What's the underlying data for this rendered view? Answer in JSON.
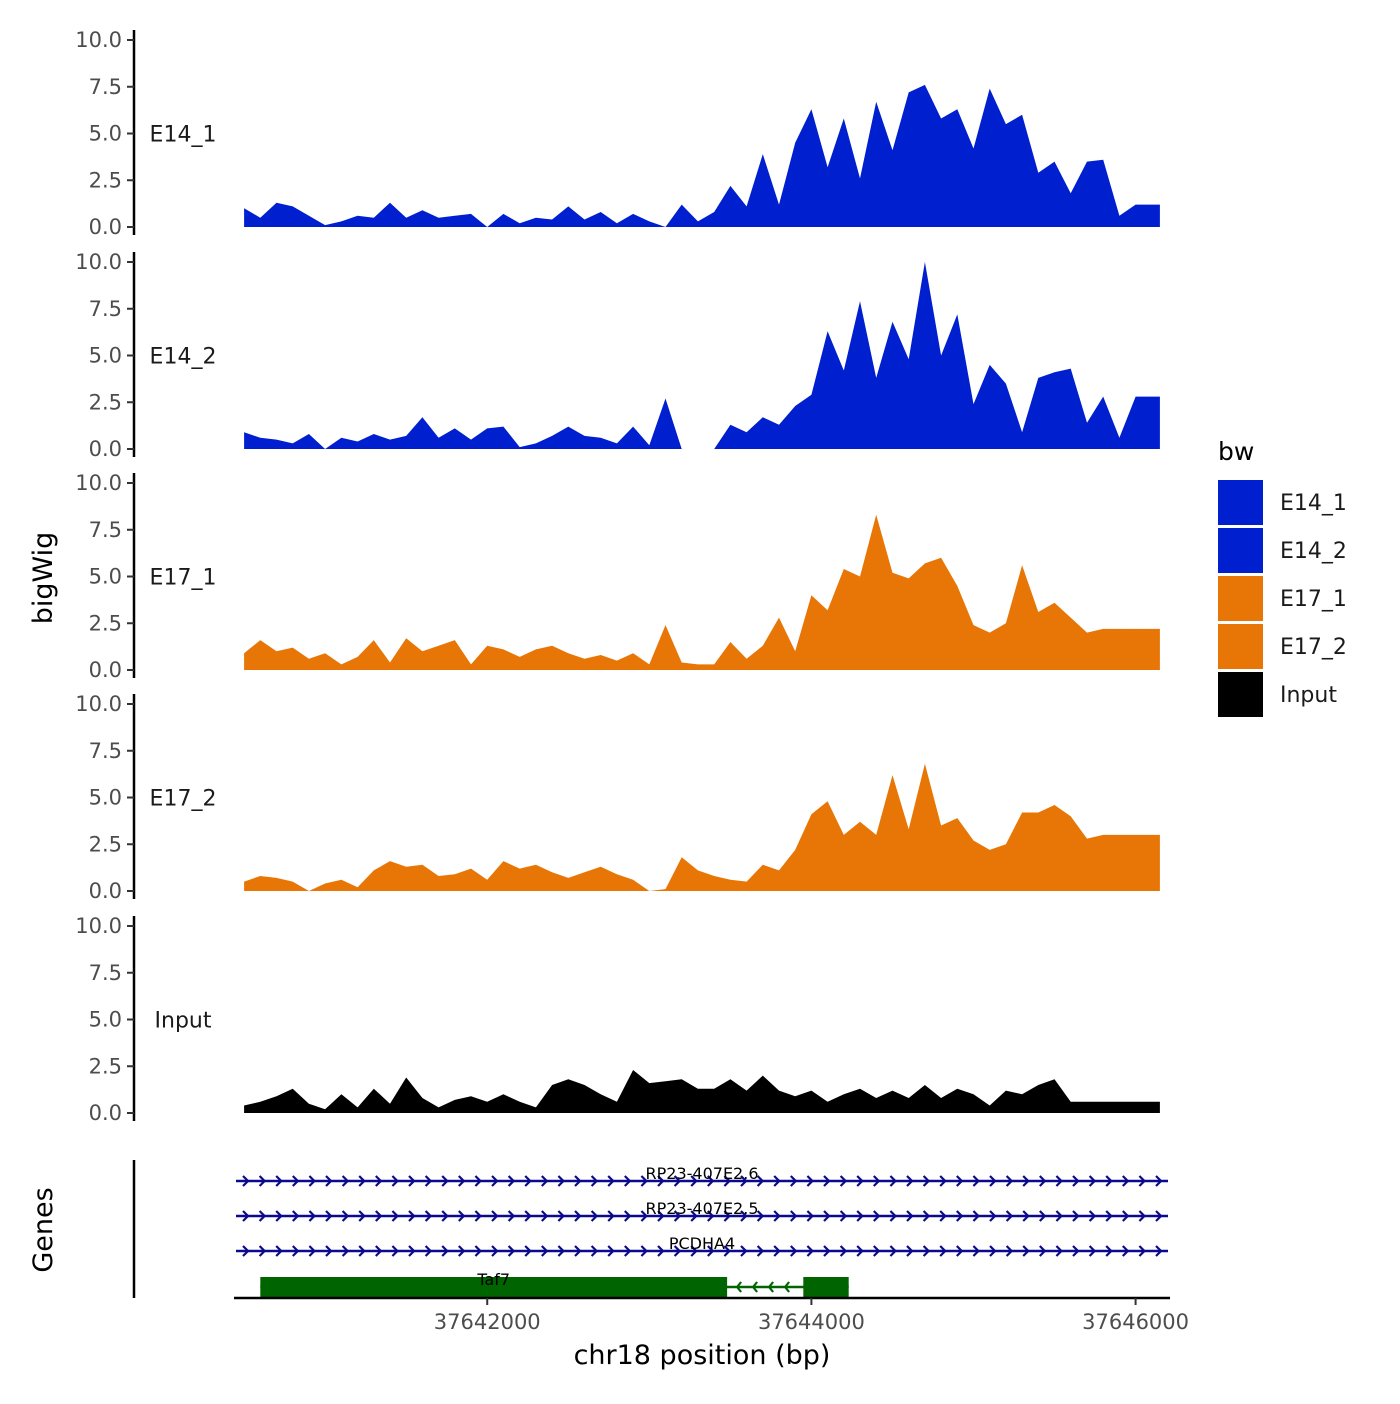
{
  "chart_data": {
    "type": "area",
    "ylabel": "bigWig",
    "xlabel": "chr18 position (bp)",
    "xlim": [
      37640450,
      37646200
    ],
    "ylim": [
      0,
      10
    ],
    "y_ticks": [
      "0.0",
      "2.5",
      "5.0",
      "7.5",
      "10.0"
    ],
    "x_ticks": [
      {
        "value": 37642000,
        "label": "37642000"
      },
      {
        "value": 37644000,
        "label": "37644000"
      },
      {
        "value": 37646000,
        "label": "37646000"
      }
    ],
    "legend_title": "bw",
    "legend_placement": "right",
    "colors": {
      "E14_1": "#0020d0",
      "E14_2": "#0020d0",
      "E17_1": "#e87607",
      "E17_2": "#e87607",
      "Input": "#000000"
    },
    "x": [
      37640500,
      37640600,
      37640700,
      37640800,
      37640900,
      37641000,
      37641100,
      37641200,
      37641300,
      37641400,
      37641500,
      37641600,
      37641700,
      37641800,
      37641900,
      37642000,
      37642100,
      37642200,
      37642300,
      37642400,
      37642500,
      37642600,
      37642700,
      37642800,
      37642900,
      37643000,
      37643100,
      37643200,
      37643300,
      37643400,
      37643500,
      37643600,
      37643700,
      37643800,
      37643900,
      37644000,
      37644100,
      37644200,
      37644300,
      37644400,
      37644500,
      37644600,
      37644700,
      37644800,
      37644900,
      37645000,
      37645100,
      37645200,
      37645300,
      37645400,
      37645500,
      37645600,
      37645700,
      37645800,
      37645900,
      37646000,
      37646100,
      37646150
    ],
    "series": [
      {
        "name": "E14_1",
        "values": [
          1.0,
          0.5,
          1.3,
          1.1,
          0.6,
          0.1,
          0.3,
          0.6,
          0.5,
          1.3,
          0.5,
          0.9,
          0.5,
          0.6,
          0.7,
          0.0,
          0.7,
          0.2,
          0.5,
          0.4,
          1.1,
          0.4,
          0.8,
          0.2,
          0.7,
          0.3,
          0.0,
          1.2,
          0.3,
          0.8,
          2.2,
          1.1,
          3.9,
          1.2,
          4.5,
          6.3,
          3.2,
          5.8,
          2.6,
          6.7,
          4.1,
          7.2,
          7.6,
          5.8,
          6.3,
          4.2,
          7.4,
          5.5,
          6.0,
          2.9,
          3.5,
          1.8,
          3.5,
          3.6,
          0.6,
          1.2,
          1.2,
          1.2
        ]
      },
      {
        "name": "E14_2",
        "values": [
          0.9,
          0.6,
          0.5,
          0.3,
          0.8,
          0.0,
          0.6,
          0.4,
          0.8,
          0.5,
          0.7,
          1.7,
          0.6,
          1.1,
          0.5,
          1.1,
          1.2,
          0.1,
          0.3,
          0.7,
          1.2,
          0.7,
          0.6,
          0.3,
          1.2,
          0.2,
          2.7,
          0.0,
          0.0,
          0.0,
          1.3,
          0.9,
          1.7,
          1.3,
          2.3,
          2.9,
          6.3,
          4.2,
          7.9,
          3.8,
          6.8,
          4.8,
          10.0,
          5.0,
          7.2,
          2.4,
          4.5,
          3.5,
          0.9,
          3.8,
          4.1,
          4.3,
          1.4,
          2.8,
          0.6,
          2.8,
          2.8,
          2.8
        ]
      },
      {
        "name": "E17_1",
        "values": [
          0.9,
          1.6,
          1.0,
          1.2,
          0.6,
          0.9,
          0.3,
          0.7,
          1.6,
          0.4,
          1.7,
          1.0,
          1.3,
          1.6,
          0.3,
          1.3,
          1.1,
          0.7,
          1.1,
          1.3,
          0.9,
          0.6,
          0.8,
          0.5,
          0.9,
          0.3,
          2.4,
          0.4,
          0.3,
          0.3,
          1.5,
          0.6,
          1.3,
          2.8,
          1.0,
          4.0,
          3.2,
          5.4,
          5.0,
          8.3,
          5.2,
          4.9,
          5.7,
          6.0,
          4.5,
          2.4,
          2.0,
          2.5,
          5.6,
          3.1,
          3.6,
          2.8,
          2.0,
          2.2,
          2.2,
          2.2,
          2.2,
          2.2
        ]
      },
      {
        "name": "E17_2",
        "values": [
          0.5,
          0.8,
          0.7,
          0.5,
          0.0,
          0.4,
          0.6,
          0.2,
          1.1,
          1.6,
          1.3,
          1.4,
          0.8,
          0.9,
          1.2,
          0.6,
          1.6,
          1.2,
          1.4,
          1.0,
          0.7,
          1.0,
          1.3,
          0.9,
          0.6,
          0.0,
          0.1,
          1.8,
          1.1,
          0.8,
          0.6,
          0.5,
          1.4,
          1.1,
          2.2,
          4.1,
          4.8,
          3.0,
          3.7,
          3.0,
          6.2,
          3.3,
          6.8,
          3.5,
          3.9,
          2.7,
          2.2,
          2.5,
          4.2,
          4.2,
          4.6,
          4.0,
          2.8,
          3.0,
          3.0,
          3.0,
          3.0,
          3.0
        ]
      },
      {
        "name": "Input",
        "values": [
          0.4,
          0.6,
          0.9,
          1.3,
          0.5,
          0.2,
          1.0,
          0.3,
          1.3,
          0.5,
          1.9,
          0.8,
          0.3,
          0.7,
          0.9,
          0.6,
          1.0,
          0.6,
          0.3,
          1.5,
          1.8,
          1.5,
          1.0,
          0.6,
          2.3,
          1.6,
          1.7,
          1.8,
          1.3,
          1.3,
          1.8,
          1.2,
          2.0,
          1.2,
          0.9,
          1.2,
          0.6,
          1.0,
          1.3,
          0.8,
          1.2,
          0.8,
          1.5,
          0.8,
          1.3,
          1.0,
          0.4,
          1.2,
          1.0,
          1.5,
          1.8,
          0.6,
          0.6,
          0.6,
          0.6,
          0.6,
          0.6,
          0.6
        ]
      }
    ],
    "genes": [
      {
        "name": "RP23-407E2.6",
        "start": 37640450,
        "end": 37646200,
        "strand": "+"
      },
      {
        "name": "RP23-407E2.5",
        "start": 37640450,
        "end": 37646200,
        "strand": "+"
      },
      {
        "name": "PCDHA4",
        "start": 37640450,
        "end": 37646200,
        "strand": "+"
      },
      {
        "name": "Taf7",
        "start": 37640600,
        "end": 37644230,
        "strand": "-",
        "exons": [
          {
            "start": 37640600,
            "end": 37643480
          },
          {
            "start": 37643950,
            "end": 37644230
          }
        ]
      }
    ],
    "gene_colors": {
      "+": "#0a0a8a",
      "-": "#006400"
    },
    "gene_track_label": "Genes"
  }
}
